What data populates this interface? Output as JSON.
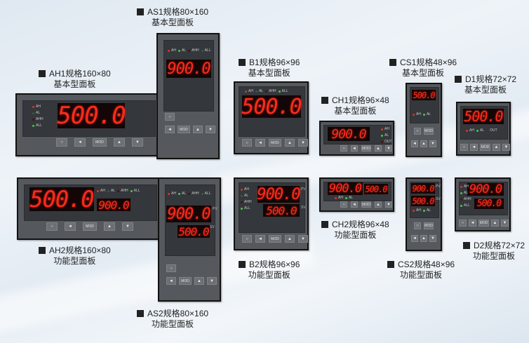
{
  "products": [
    {
      "id": "AH1",
      "model": "AH1规格160×80",
      "type": "基本型面板",
      "displays": [
        "500.0"
      ],
      "leds": [
        {
          "label": "AH",
          "color": "#e53020"
        },
        {
          "label": "AL",
          "color": "#3a5a3a"
        },
        {
          "label": "AHH",
          "color": "#4a1010"
        },
        {
          "label": "ALL",
          "color": "#40d040"
        }
      ],
      "buttons": [
        "○",
        "◄",
        "MOD",
        "▲",
        "▼"
      ]
    },
    {
      "id": "AS1",
      "model": "AS1规格80×160",
      "type": "基本型面板",
      "displays": [
        "900.0"
      ],
      "leds": [
        {
          "label": "AH",
          "color": "#e53020"
        },
        {
          "label": "AL",
          "color": "#40d040"
        },
        {
          "label": "AHH",
          "color": "#4a1010"
        },
        {
          "label": "ALL",
          "color": "#3a5a3a"
        }
      ],
      "buttons": [
        "○",
        "◄",
        "MOD",
        "▲",
        "▼"
      ]
    },
    {
      "id": "B1",
      "model": "B1规格96×96",
      "type": "基本型面板",
      "displays": [
        "500.0"
      ],
      "leds": [
        {
          "label": "AH",
          "color": "#e53020"
        },
        {
          "label": "AL",
          "color": "#3a5a3a"
        },
        {
          "label": "AHH",
          "color": "#4a1010"
        },
        {
          "label": "ALL",
          "color": "#40d040"
        }
      ],
      "buttons": [
        "○",
        "◄",
        "MOD",
        "▲",
        "▼"
      ]
    },
    {
      "id": "CH1",
      "model": "CH1规格96×48",
      "type": "基本型面板",
      "displays": [
        "900.0"
      ],
      "leds": [
        {
          "label": "AH",
          "color": "#e53020"
        },
        {
          "label": "AL",
          "color": "#40d040"
        },
        {
          "label": "OUT",
          "color": "#4a1010"
        }
      ],
      "buttons": [
        "○",
        "◄",
        "MOD",
        "▲",
        "▼"
      ]
    },
    {
      "id": "CS1",
      "model": "CS1规格48×96",
      "type": "基本型面板",
      "displays": [
        "500.0"
      ],
      "leds": [
        {
          "label": "AH",
          "color": "#e53020"
        },
        {
          "label": "AL",
          "color": "#40d040"
        }
      ],
      "buttons": [
        "○",
        "◄",
        "MOD",
        "▲",
        "▼"
      ]
    },
    {
      "id": "D1",
      "model": "D1规格72×72",
      "type": "基本型面板",
      "displays": [
        "500.0"
      ],
      "leds": [
        {
          "label": "AH",
          "color": "#e53020"
        },
        {
          "label": "AL",
          "color": "#40d040"
        },
        {
          "label": "OUT",
          "color": "#34373b"
        }
      ],
      "buttons": [
        "○",
        "◄",
        "MOD",
        "▲",
        "▼"
      ]
    },
    {
      "id": "AH2",
      "model": "AH2规格160×80",
      "type": "功能型面板",
      "displays": [
        "500.0",
        "900.0"
      ],
      "leds": [
        {
          "label": "AH",
          "color": "#e53020"
        },
        {
          "label": "AL",
          "color": "#3a5a3a"
        },
        {
          "label": "AHH",
          "color": "#4a1010"
        },
        {
          "label": "ALL",
          "color": "#40d040"
        }
      ],
      "buttons": [
        "○",
        "◄",
        "MOD",
        "▲",
        "▼"
      ]
    },
    {
      "id": "AS2",
      "model": "AS2规格80×160",
      "type": "功能型面板",
      "displays": [
        "900.0",
        "500.0"
      ],
      "leds": [
        {
          "label": "AH",
          "color": "#e53020"
        },
        {
          "label": "AL",
          "color": "#40d040"
        },
        {
          "label": "AHH",
          "color": "#4a1010"
        },
        {
          "label": "ALL",
          "color": "#3a5a3a"
        }
      ],
      "side": [
        "PV",
        "SV"
      ],
      "buttons": [
        "○",
        "◄",
        "MOD",
        "▲",
        "▼"
      ]
    },
    {
      "id": "B2",
      "model": "B2规格96×96",
      "type": "功能型面板",
      "displays": [
        "900.0",
        "500.0"
      ],
      "leds": [
        {
          "label": "AH",
          "color": "#e53020"
        },
        {
          "label": "AL",
          "color": "#3a5a3a"
        },
        {
          "label": "AHH",
          "color": "#4a1010"
        },
        {
          "label": "ALL",
          "color": "#40d040"
        }
      ],
      "side": [
        "PV",
        "SV"
      ],
      "buttons": [
        "○",
        "◄",
        "MOD",
        "▲",
        "▼"
      ]
    },
    {
      "id": "CH2",
      "model": "CH2规格96×48",
      "type": "功能型面板",
      "displays": [
        "900.0",
        "500.0"
      ],
      "leds": [
        {
          "label": "AH",
          "color": "#e53020"
        },
        {
          "label": "AL",
          "color": "#40d040"
        }
      ],
      "buttons": [
        "○",
        "◄",
        "MOD",
        "▲",
        "▼"
      ]
    },
    {
      "id": "CS2",
      "model": "CS2规格48×96",
      "type": "功能型面板",
      "displays": [
        "900.0",
        "500.0"
      ],
      "leds": [
        {
          "label": "AH",
          "color": "#e53020"
        },
        {
          "label": "AL",
          "color": "#40d040"
        }
      ],
      "side": [
        "PV",
        "SV"
      ],
      "buttons": [
        "○",
        "◄",
        "MOD",
        "▲",
        "▼"
      ]
    },
    {
      "id": "D2",
      "model": "D2规格72×72",
      "type": "功能型面板",
      "displays": [
        "900.0",
        "500.0"
      ],
      "leds": [
        {
          "label": "AH",
          "color": "#e53020"
        },
        {
          "label": "AL",
          "color": "#40d040"
        },
        {
          "label": "AHH",
          "color": "#4a1010"
        },
        {
          "label": "ALL",
          "color": "#40d040"
        }
      ],
      "buttons": [
        "○",
        "◄",
        "MOD",
        "▲",
        "▼"
      ]
    }
  ]
}
